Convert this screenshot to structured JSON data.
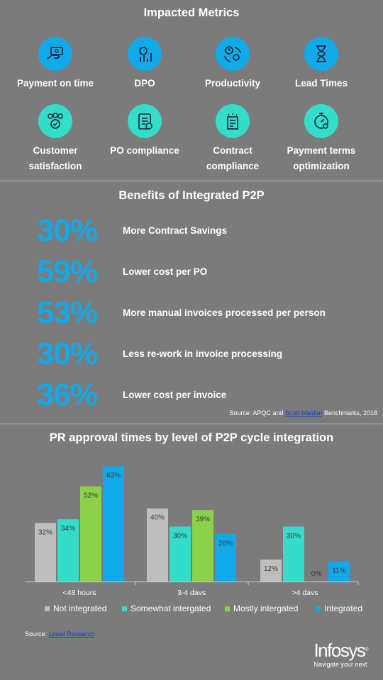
{
  "metrics": {
    "title": "Impacted Metrics",
    "items": [
      {
        "label": "Payment on time",
        "icon": "payment-icon",
        "color": "blue"
      },
      {
        "label": "DPO",
        "icon": "dpo-icon",
        "color": "blue"
      },
      {
        "label": "Productivity",
        "icon": "productivity-icon",
        "color": "blue"
      },
      {
        "label": "Lead Times",
        "icon": "hourglass-icon",
        "color": "blue"
      },
      {
        "label": "Customer satisfaction",
        "icon": "customer-icon",
        "color": "teal"
      },
      {
        "label": "PO compliance",
        "icon": "clipboard-icon",
        "color": "teal"
      },
      {
        "label": "Contract compliance",
        "icon": "contract-icon",
        "color": "teal"
      },
      {
        "label": "Payment terms optimization",
        "icon": "stopwatch-icon",
        "color": "teal"
      }
    ]
  },
  "benefits": {
    "title": "Benefits of Integrated P2P",
    "items": [
      {
        "pct": "30%",
        "text": "More Contract Savings"
      },
      {
        "pct": "59%",
        "text": "Lower cost per PO"
      },
      {
        "pct": "53%",
        "text": "More manual invoices processed per person"
      },
      {
        "pct": "30%",
        "text": "Less re-work in invoice processing"
      },
      {
        "pct": "36%",
        "text": "Lower cost per invoice"
      }
    ],
    "source_prefix": "Source: APQC and ",
    "source_link": "Scott Maiden",
    "source_suffix": " Benchmarks, 2018"
  },
  "chart_data": {
    "type": "bar",
    "title": "PR approval times by level of P2P cycle integration",
    "categories": [
      "<48 hours",
      "3-4 days",
      ">4 days"
    ],
    "series": [
      {
        "name": "Not integrated",
        "values": [
          32,
          40,
          12
        ],
        "labels": [
          "32%",
          "40%",
          "12%"
        ],
        "color": "#bebebe"
      },
      {
        "name": "Somewhat intergated",
        "values": [
          34,
          30,
          30
        ],
        "labels": [
          "34%",
          "30%",
          "30%"
        ],
        "color": "#33ddc9"
      },
      {
        "name": "Mostly intergated",
        "values": [
          52,
          39,
          0
        ],
        "labels": [
          "52%",
          "39%",
          "0%"
        ],
        "color": "#8bd14a"
      },
      {
        "name": "Integrated",
        "values": [
          63,
          26,
          11
        ],
        "labels": [
          "63%",
          "26%",
          "11%"
        ],
        "color": "#12a9e8"
      }
    ],
    "ylim": [
      0,
      65
    ],
    "legend": "bottom",
    "source_prefix": "Source: ",
    "source_link": "Lewel Research"
  },
  "logo": {
    "name": "Infosys",
    "reg": "®",
    "tagline": "Navigate your next"
  }
}
